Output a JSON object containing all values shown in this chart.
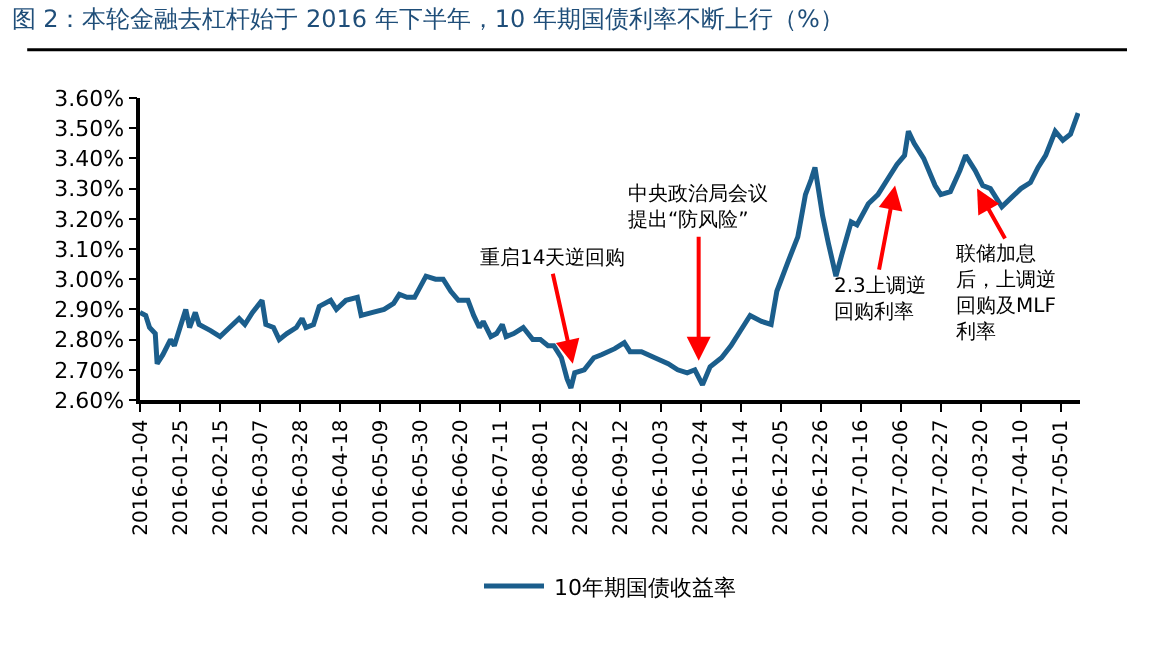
{
  "chart_data": {
    "type": "line",
    "title": "图 2：本轮金融去杠杆始于 2016 年下半年，10 年期国债利率不断上行（%）",
    "x": [
      "2016-01-04",
      "2016-01-07",
      "2016-01-09",
      "2016-01-12",
      "2016-01-13",
      "2016-01-16",
      "2016-01-20",
      "2016-01-22",
      "2016-01-25",
      "2016-01-28",
      "2016-01-30",
      "2016-02-02",
      "2016-02-04",
      "2016-02-10",
      "2016-02-15",
      "2016-02-20",
      "2016-02-25",
      "2016-02-28",
      "2016-03-03",
      "2016-03-08",
      "2016-03-10",
      "2016-03-14",
      "2016-03-17",
      "2016-03-21",
      "2016-03-26",
      "2016-03-29",
      "2016-03-31",
      "2016-04-04",
      "2016-04-07",
      "2016-04-13",
      "2016-04-16",
      "2016-04-21",
      "2016-04-27",
      "2016-04-29",
      "2016-05-05",
      "2016-05-11",
      "2016-05-16",
      "2016-05-19",
      "2016-05-23",
      "2016-05-27",
      "2016-06-02",
      "2016-06-07",
      "2016-06-11",
      "2016-06-15",
      "2016-06-19",
      "2016-06-24",
      "2016-06-27",
      "2016-06-30",
      "2016-07-02",
      "2016-07-06",
      "2016-07-09",
      "2016-07-12",
      "2016-07-14",
      "2016-07-18",
      "2016-07-23",
      "2016-07-28",
      "2016-08-01",
      "2016-08-05",
      "2016-08-08",
      "2016-08-12",
      "2016-08-15",
      "2016-08-17",
      "2016-08-19",
      "2016-08-24",
      "2016-08-29",
      "2016-09-02",
      "2016-09-09",
      "2016-09-14",
      "2016-09-17",
      "2016-09-23",
      "2016-09-30",
      "2016-10-07",
      "2016-10-12",
      "2016-10-17",
      "2016-10-21",
      "2016-10-25",
      "2016-10-29",
      "2016-11-04",
      "2016-11-09",
      "2016-11-14",
      "2016-11-19",
      "2016-11-25",
      "2016-11-30",
      "2016-12-03",
      "2016-12-09",
      "2016-12-14",
      "2016-12-18",
      "2016-12-21",
      "2016-12-23",
      "2016-12-27",
      "2016-12-30",
      "2017-01-03",
      "2017-01-06",
      "2017-01-11",
      "2017-01-14",
      "2017-01-20",
      "2017-01-25",
      "2017-01-30",
      "2017-02-04",
      "2017-02-08",
      "2017-02-10",
      "2017-02-13",
      "2017-02-18",
      "2017-02-24",
      "2017-02-27",
      "2017-03-04",
      "2017-03-09",
      "2017-03-12",
      "2017-03-17",
      "2017-03-21",
      "2017-03-25",
      "2017-03-31",
      "2017-04-05",
      "2017-04-10",
      "2017-04-15",
      "2017-04-19",
      "2017-04-23",
      "2017-04-28",
      "2017-05-02",
      "2017-05-06",
      "2017-05-10"
    ],
    "series": [
      {
        "name": "10年期国债收益率",
        "color": "#1b5e8c",
        "values": [
          2.89,
          2.88,
          2.84,
          2.82,
          2.72,
          2.75,
          2.8,
          2.78,
          2.84,
          2.9,
          2.84,
          2.89,
          2.85,
          2.83,
          2.81,
          2.84,
          2.87,
          2.85,
          2.89,
          2.93,
          2.85,
          2.84,
          2.8,
          2.82,
          2.84,
          2.87,
          2.84,
          2.85,
          2.91,
          2.93,
          2.9,
          2.93,
          2.94,
          2.88,
          2.89,
          2.9,
          2.92,
          2.95,
          2.94,
          2.94,
          3.01,
          3.0,
          3.0,
          2.96,
          2.93,
          2.93,
          2.88,
          2.84,
          2.86,
          2.81,
          2.82,
          2.85,
          2.81,
          2.82,
          2.84,
          2.8,
          2.8,
          2.78,
          2.78,
          2.74,
          2.67,
          2.64,
          2.69,
          2.7,
          2.74,
          2.75,
          2.77,
          2.79,
          2.76,
          2.76,
          2.74,
          2.72,
          2.7,
          2.69,
          2.7,
          2.65,
          2.71,
          2.74,
          2.78,
          2.83,
          2.88,
          2.86,
          2.85,
          2.96,
          3.06,
          3.14,
          3.28,
          3.33,
          3.37,
          3.21,
          3.12,
          3.01,
          3.08,
          3.19,
          3.18,
          3.25,
          3.28,
          3.33,
          3.38,
          3.41,
          3.49,
          3.45,
          3.4,
          3.31,
          3.28,
          3.29,
          3.36,
          3.41,
          3.36,
          3.31,
          3.3,
          3.24,
          3.27,
          3.3,
          3.32,
          3.37,
          3.41,
          3.49,
          3.46,
          3.48,
          3.55
        ]
      }
    ],
    "xlim": [
      "2016-01-04",
      "2017-05-11"
    ],
    "xticks": [
      {
        "value": "2016-01-04",
        "label": "2016-01-04"
      },
      {
        "value": "2016-01-25",
        "label": "2016-01-25"
      },
      {
        "value": "2016-02-15",
        "label": "2016-02-15"
      },
      {
        "value": "2016-03-07",
        "label": "2016-03-07"
      },
      {
        "value": "2016-03-28",
        "label": "2016-03-28"
      },
      {
        "value": "2016-04-18",
        "label": "2016-04-18"
      },
      {
        "value": "2016-05-09",
        "label": "2016-05-09"
      },
      {
        "value": "2016-05-30",
        "label": "2016-05-30"
      },
      {
        "value": "2016-06-20",
        "label": "2016-06-20"
      },
      {
        "value": "2016-07-11",
        "label": "2016-07-11"
      },
      {
        "value": "2016-08-01",
        "label": "2016-08-01"
      },
      {
        "value": "2016-08-22",
        "label": "2016-08-22"
      },
      {
        "value": "2016-09-12",
        "label": "2016-09-12"
      },
      {
        "value": "2016-10-03",
        "label": "2016-10-03"
      },
      {
        "value": "2016-10-24",
        "label": "2016-10-24"
      },
      {
        "value": "2016-11-14",
        "label": "2016-11-14"
      },
      {
        "value": "2016-12-05",
        "label": "2016-12-05"
      },
      {
        "value": "2016-12-26",
        "label": "2016-12-26"
      },
      {
        "value": "2017-01-16",
        "label": "2017-01-16"
      },
      {
        "value": "2017-02-06",
        "label": "2017-02-06"
      },
      {
        "value": "2017-02-27",
        "label": "2017-02-27"
      },
      {
        "value": "2017-03-20",
        "label": "2017-03-20"
      },
      {
        "value": "2017-04-10",
        "label": "2017-04-10"
      },
      {
        "value": "2017-05-01",
        "label": "2017-05-01"
      }
    ],
    "ylim": [
      2.6,
      3.6
    ],
    "yticks": [
      {
        "value": 2.6,
        "label": "2.60%"
      },
      {
        "value": 2.7,
        "label": "2.70%"
      },
      {
        "value": 2.8,
        "label": "2.80%"
      },
      {
        "value": 2.9,
        "label": "2.90%"
      },
      {
        "value": 3.0,
        "label": "3.00%"
      },
      {
        "value": 3.1,
        "label": "3.10%"
      },
      {
        "value": 3.2,
        "label": "3.20%"
      },
      {
        "value": 3.3,
        "label": "3.30%"
      },
      {
        "value": 3.4,
        "label": "3.40%"
      },
      {
        "value": 3.5,
        "label": "3.50%"
      },
      {
        "value": 3.6,
        "label": "3.60%"
      }
    ],
    "annotations": [
      {
        "text": "重启14天逆回购",
        "x": "2016-08-18",
        "y": 2.72
      },
      {
        "text": "中央政治局会议提出“防风险”",
        "x": "2016-10-23",
        "y": 2.73
      },
      {
        "text": "2.3上调逆回购利率",
        "x": "2017-02-03",
        "y": 3.31
      },
      {
        "text": "联储加息后，上调逆回购及MLF利率",
        "x": "2017-03-18",
        "y": 3.3
      }
    ],
    "legend": "bottom",
    "marker": "none",
    "line_style": "solid"
  }
}
